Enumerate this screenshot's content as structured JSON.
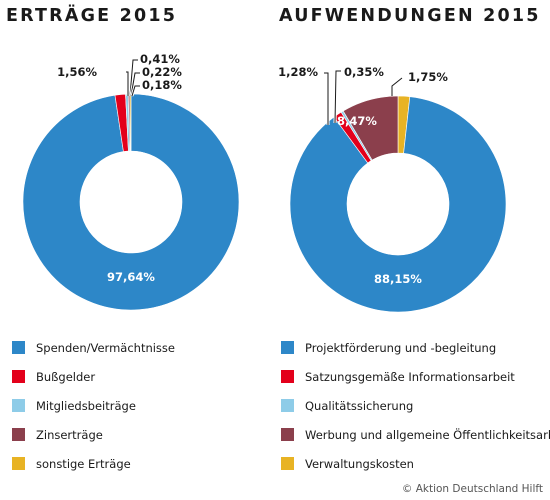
{
  "titles": {
    "left": "ERTRÄGE 2015",
    "right": "AUFWENDUNGEN 2015"
  },
  "colors": {
    "blue": "#2d87c8",
    "red": "#e3001b",
    "lightblue": "#8ecce8",
    "maroon": "#8b3f4c",
    "yellow": "#e8b324"
  },
  "chart_data": [
    {
      "type": "pie",
      "title": "ERTRÄGE 2015",
      "categories": [
        "Spenden/Vermächtnisse",
        "Bußgelder",
        "Mitgliedsbeiträge",
        "Zinserträge",
        "sonstige Erträge"
      ],
      "values": [
        97.64,
        1.56,
        0.41,
        0.22,
        0.18
      ],
      "labels": [
        "97,64%",
        "1,56%",
        "0,41%",
        "0,22%",
        "0,18%"
      ],
      "colors": [
        "#2d87c8",
        "#e3001b",
        "#8ecce8",
        "#8b3f4c",
        "#e8b324"
      ]
    },
    {
      "type": "pie",
      "title": "AUFWENDUNGEN 2015",
      "categories": [
        "Projektförderung und -begleitung",
        "Satzungsgemäße Informationsarbeit",
        "Qualitätssicherung",
        "Werbung und allgemeine Öffentlichkeitsarbeit",
        "Verwaltungskosten"
      ],
      "values": [
        88.15,
        1.28,
        0.35,
        8.47,
        1.75
      ],
      "labels": [
        "88,15%",
        "1,28%",
        "0,35%",
        "8,47%",
        "1,75%"
      ],
      "colors": [
        "#2d87c8",
        "#e3001b",
        "#8ecce8",
        "#8b3f4c",
        "#e8b324"
      ]
    }
  ],
  "legend_left": [
    {
      "label": "Spenden/Vermächtnisse",
      "color": "#2d87c8"
    },
    {
      "label": "Bußgelder",
      "color": "#e3001b"
    },
    {
      "label": "Mitgliedsbeiträge",
      "color": "#8ecce8"
    },
    {
      "label": "Zinserträge",
      "color": "#8b3f4c"
    },
    {
      "label": "sonstige Erträge",
      "color": "#e8b324"
    }
  ],
  "legend_right": [
    {
      "label": "Projektförderung und -begleitung",
      "color": "#2d87c8"
    },
    {
      "label": "Satzungsgemäße Informationsarbeit",
      "color": "#e3001b"
    },
    {
      "label": "Qualitätssicherung",
      "color": "#8ecce8"
    },
    {
      "label": "Werbung und allgemeine Öffentlichkeitsarbeit",
      "color": "#8b3f4c"
    },
    {
      "label": "Verwaltungskosten",
      "color": "#e8b324"
    }
  ],
  "credit": "© Aktion Deutschland Hilft"
}
